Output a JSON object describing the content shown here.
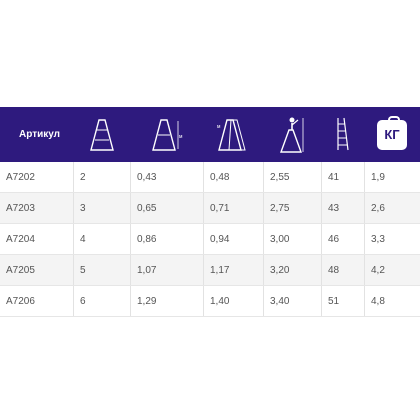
{
  "header": {
    "article_label": "Артикул",
    "icons": [
      "ladder-a-frame-icon",
      "ladder-height-icon",
      "ladder-working-height-icon",
      "person-on-ladder-icon",
      "ladder-steps-length-icon",
      "weight-icon"
    ],
    "kg_label": "КГ",
    "colors": {
      "header_bg": "#2e1a7e",
      "header_text": "#ffffff"
    }
  },
  "rows": [
    [
      "А7202",
      "2",
      "0,43",
      "0,48",
      "2,55",
      "41",
      "1,9"
    ],
    [
      "А7203",
      "3",
      "0,65",
      "0,71",
      "2,75",
      "43",
      "2,6"
    ],
    [
      "А7204",
      "4",
      "0,86",
      "0,94",
      "3,00",
      "46",
      "3,3"
    ],
    [
      "А7205",
      "5",
      "1,07",
      "1,17",
      "3,20",
      "48",
      "4,2"
    ],
    [
      "А7206",
      "6",
      "1,29",
      "1,40",
      "3,40",
      "51",
      "4,8"
    ]
  ]
}
